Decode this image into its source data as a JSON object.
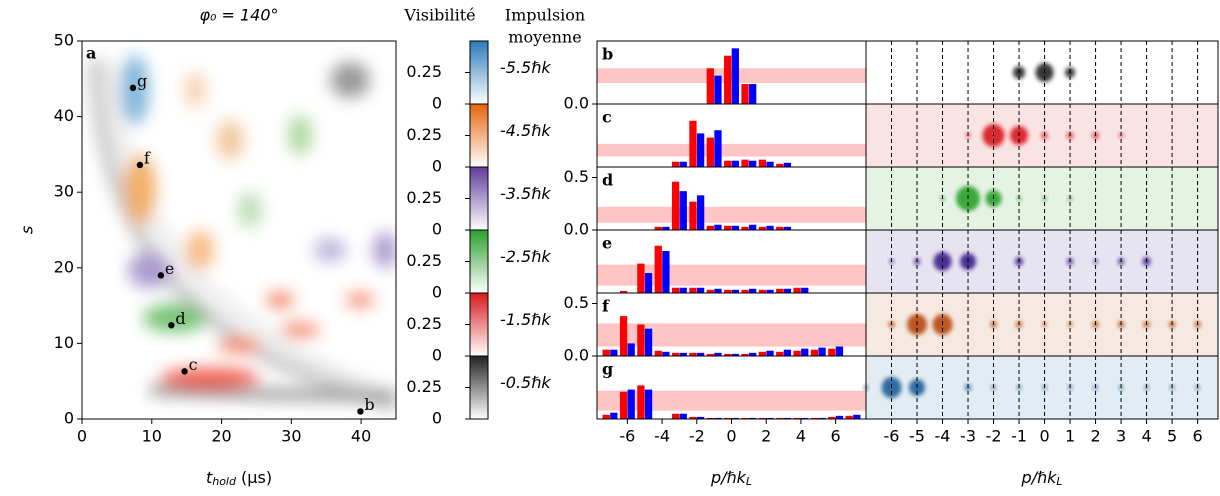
{
  "chart_data": [
    {
      "type": "heatmap",
      "panel_label": "a",
      "title": "φ₀ = 140°",
      "xlabel": {
        "main": "t",
        "sub": "hold",
        "unit": " (μs)"
      },
      "ylabel": "s",
      "xlim": [
        0,
        45
      ],
      "ylim": [
        0,
        50
      ],
      "xticks": [
        0,
        10,
        20,
        30,
        40
      ],
      "yticks": [
        0,
        10,
        20,
        30,
        40,
        50
      ],
      "points": [
        {
          "label": "b",
          "x": 39.9,
          "y": 1.0
        },
        {
          "label": "c",
          "x": 14.7,
          "y": 6.3
        },
        {
          "label": "d",
          "x": 12.8,
          "y": 12.4
        },
        {
          "label": "e",
          "x": 11.3,
          "y": 19.0
        },
        {
          "label": "f",
          "x": 8.3,
          "y": 33.6
        },
        {
          "label": "g",
          "x": 7.3,
          "y": 43.8
        }
      ]
    },
    {
      "type": "colorbar",
      "title": "Visibilité",
      "subtitle_lines": [
        "Impulsion",
        "moyenne"
      ],
      "ylim": [
        0,
        0.5
      ],
      "yticks": [
        0,
        0.25
      ],
      "segments": [
        {
          "label": "-5.5ℏk",
          "color": "#2b7bb9"
        },
        {
          "label": "-4.5ℏk",
          "color": "#e6660f"
        },
        {
          "label": "-3.5ℏk",
          "color": "#5e3c99"
        },
        {
          "label": "-2.5ℏk",
          "color": "#2ca02c"
        },
        {
          "label": "-1.5ℏk",
          "color": "#d7191c"
        },
        {
          "label": "-0.5ℏk",
          "color": "#222222"
        }
      ]
    },
    {
      "type": "bar",
      "panel_label": "b",
      "x": [
        -7,
        -6,
        -5,
        -4,
        -3,
        -2,
        -1,
        0,
        1,
        2,
        3,
        4,
        5,
        6,
        7
      ],
      "xlim": [
        -7.75,
        7.75
      ],
      "ylim": [
        0,
        0.6
      ],
      "yticks": [
        {
          "value": 0,
          "label": "0.0"
        }
      ],
      "shaded_range": [
        0.2,
        0.34
      ],
      "series": [
        {
          "color": "#ff0000",
          "values": [
            0,
            0,
            0,
            0,
            0,
            0,
            0.34,
            0.46,
            0.19,
            0,
            0,
            0,
            0,
            0,
            0
          ]
        },
        {
          "color": "#0000ff",
          "values": [
            0,
            0,
            0,
            0,
            0,
            0,
            0.27,
            0.53,
            0.19,
            0,
            0,
            0,
            0,
            0,
            0
          ]
        }
      ]
    },
    {
      "type": "bar",
      "panel_label": "c",
      "x": [
        -7,
        -6,
        -5,
        -4,
        -3,
        -2,
        -1,
        0,
        1,
        2,
        3,
        4,
        5,
        6,
        7
      ],
      "xlim": [
        -7.75,
        7.75
      ],
      "ylim": [
        0,
        0.6
      ],
      "yticks": [],
      "shaded_range": [
        0.1,
        0.22
      ],
      "series": [
        {
          "color": "#ff0000",
          "values": [
            0,
            0,
            0,
            0,
            0.05,
            0.44,
            0.28,
            0.06,
            0.07,
            0.07,
            0.03,
            0,
            0,
            0,
            0
          ]
        },
        {
          "color": "#0000ff",
          "values": [
            0,
            0,
            0,
            0,
            0.05,
            0.32,
            0.35,
            0.06,
            0.06,
            0.05,
            0.04,
            0,
            0,
            0,
            0
          ]
        }
      ]
    },
    {
      "type": "bar",
      "panel_label": "d",
      "x": [
        -7,
        -6,
        -5,
        -4,
        -3,
        -2,
        -1,
        0,
        1,
        2,
        3,
        4,
        5,
        6,
        7
      ],
      "xlim": [
        -7.75,
        7.75
      ],
      "ylim": [
        0,
        0.6
      ],
      "yticks": [
        {
          "value": 0,
          "label": "0.0"
        },
        0.5
      ],
      "shaded_range": [
        0.07,
        0.22
      ],
      "series": [
        {
          "color": "#ff0000",
          "values": [
            0,
            0,
            0,
            0.03,
            0.46,
            0.27,
            0.04,
            0.04,
            0.03,
            0.03,
            0.03,
            0,
            0,
            0,
            0
          ]
        },
        {
          "color": "#0000ff",
          "values": [
            0,
            0,
            0,
            0.03,
            0.37,
            0.33,
            0.05,
            0.04,
            0.05,
            0.04,
            0.03,
            0,
            0,
            0,
            0
          ]
        }
      ]
    },
    {
      "type": "bar",
      "panel_label": "e",
      "x": [
        -7,
        -6,
        -5,
        -4,
        -3,
        -2,
        -1,
        0,
        1,
        2,
        3,
        4,
        5,
        6,
        7
      ],
      "xlim": [
        -7.75,
        7.75
      ],
      "ylim": [
        0,
        0.6
      ],
      "yticks": [],
      "shaded_range": [
        0.07,
        0.27
      ],
      "series": [
        {
          "color": "#ff0000",
          "values": [
            0,
            0.02,
            0.28,
            0.45,
            0.05,
            0.05,
            0.03,
            0.03,
            0.03,
            0.03,
            0.04,
            0.05,
            0,
            0,
            0
          ]
        },
        {
          "color": "#0000ff",
          "values": [
            0,
            0,
            0.19,
            0.4,
            0.05,
            0.05,
            0.04,
            0.03,
            0.04,
            0.03,
            0.04,
            0.05,
            0,
            0,
            0
          ]
        }
      ]
    },
    {
      "type": "bar",
      "panel_label": "f",
      "x": [
        -7,
        -6,
        -5,
        -4,
        -3,
        -2,
        -1,
        0,
        1,
        2,
        3,
        4,
        5,
        6,
        7
      ],
      "xlim": [
        -7.75,
        7.75
      ],
      "ylim": [
        0,
        0.6
      ],
      "yticks": [
        {
          "value": 0,
          "label": "0.0"
        },
        0.5
      ],
      "shaded_range": [
        0.09,
        0.31
      ],
      "series": [
        {
          "color": "#ff0000",
          "values": [
            0.06,
            0.38,
            0.3,
            0.05,
            0.03,
            0.03,
            0.02,
            0.02,
            0.02,
            0.04,
            0.04,
            0.05,
            0.06,
            0.07,
            0
          ]
        },
        {
          "color": "#0000ff",
          "values": [
            0.06,
            0.12,
            0.26,
            0.04,
            0.03,
            0.03,
            0.03,
            0.02,
            0.03,
            0.05,
            0.06,
            0.07,
            0.08,
            0.09,
            0
          ]
        }
      ]
    },
    {
      "type": "bar",
      "panel_label": "g",
      "x": [
        -7,
        -6,
        -5,
        -4,
        -3,
        -2,
        -1,
        0,
        1,
        2,
        3,
        4,
        5,
        6,
        7
      ],
      "xlim": [
        -7.75,
        7.75
      ],
      "ylim": [
        0,
        0.6
      ],
      "yticks": [],
      "shaded_range": [
        0.08,
        0.27
      ],
      "xticks": [
        -6,
        -4,
        -2,
        0,
        2,
        4,
        6
      ],
      "xlabel": {
        "main": "p/ℏk",
        "sub": "L"
      },
      "series": [
        {
          "color": "#ff0000",
          "values": [
            0.04,
            0.26,
            0.32,
            0,
            0.05,
            0.02,
            0.01,
            0.01,
            0.01,
            0.01,
            0.01,
            0.01,
            0.01,
            0.02,
            0.03
          ]
        },
        {
          "color": "#0000ff",
          "values": [
            0.06,
            0.28,
            0.28,
            0,
            0.05,
            0.02,
            0.01,
            0.01,
            0.01,
            0.01,
            0.01,
            0.01,
            0.01,
            0.03,
            0.04
          ]
        }
      ]
    },
    {
      "type": "image-strip",
      "xlim": [
        -7.0,
        6.8
      ],
      "xticks": [
        -6,
        -5,
        -4,
        -3,
        -2,
        -1,
        0,
        1,
        2,
        3,
        4,
        5,
        6
      ],
      "xlabel": {
        "main": "p/ℏk",
        "sub": "L"
      },
      "rows": [
        {
          "color": "#222222"
        },
        {
          "color": "#d7191c"
        },
        {
          "color": "#2ca02c"
        },
        {
          "color": "#3b1f8c"
        },
        {
          "color": "#b8470c"
        },
        {
          "color": "#1f5f99"
        }
      ]
    }
  ]
}
